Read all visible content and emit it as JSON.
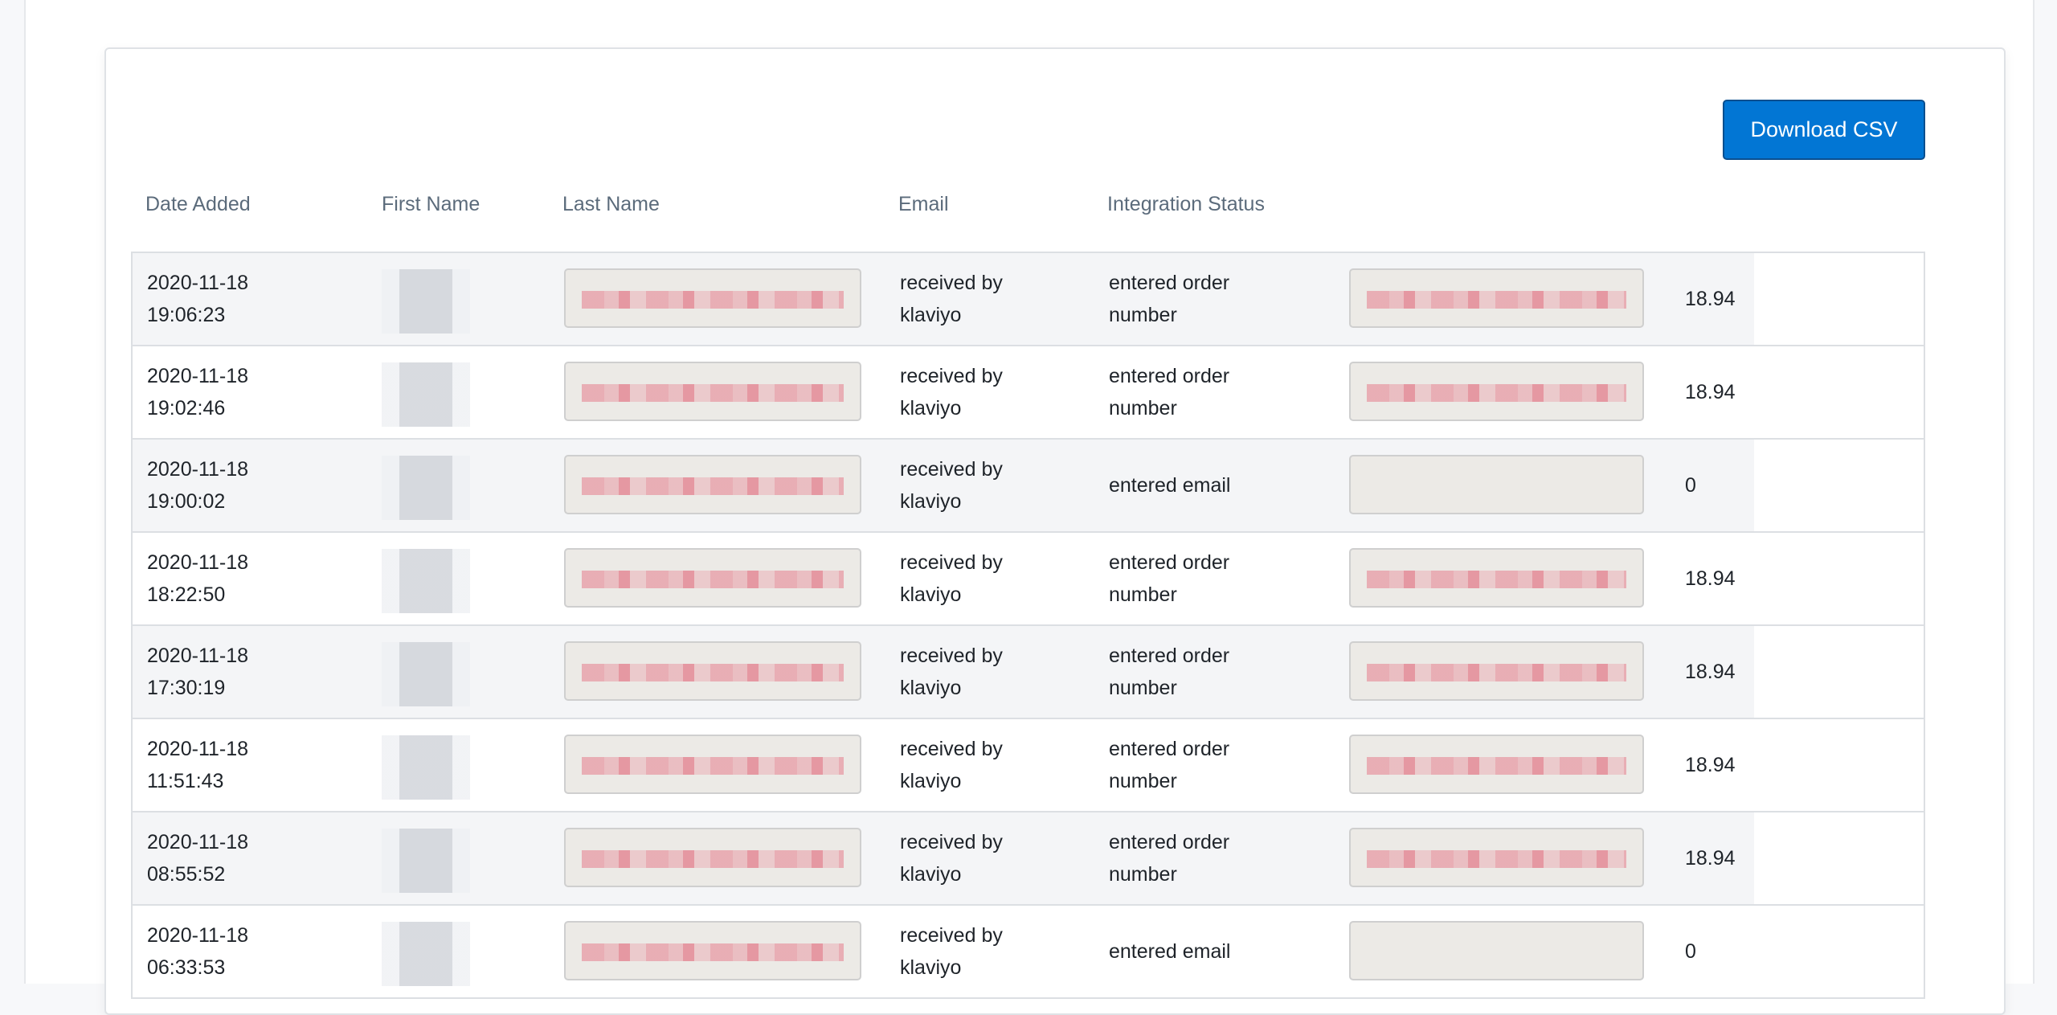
{
  "toolbar": {
    "download_label": "Download CSV",
    "accent": "#0276d4"
  },
  "columns": [
    "Date Added",
    "First Name",
    "Last Name",
    "Email",
    "Integration Status"
  ],
  "rows": [
    {
      "date": "2020-11-18",
      "time": "19:06:23",
      "email": "received by klaviyo",
      "status": "entered order number",
      "value": "18.94",
      "redacted_phone": true
    },
    {
      "date": "2020-11-18",
      "time": "19:02:46",
      "email": "received by klaviyo",
      "status": "entered order number",
      "value": "18.94",
      "redacted_phone": true
    },
    {
      "date": "2020-11-18",
      "time": "19:00:02",
      "email": "received by klaviyo",
      "status": "entered email",
      "value": "0",
      "redacted_phone": false
    },
    {
      "date": "2020-11-18",
      "time": "18:22:50",
      "email": "received by klaviyo",
      "status": "entered order number",
      "value": "18.94",
      "redacted_phone": true
    },
    {
      "date": "2020-11-18",
      "time": "17:30:19",
      "email": "received by klaviyo",
      "status": "entered order number",
      "value": "18.94",
      "redacted_phone": true
    },
    {
      "date": "2020-11-18",
      "time": "11:51:43",
      "email": "received by klaviyo",
      "status": "entered order number",
      "value": "18.94",
      "redacted_phone": true
    },
    {
      "date": "2020-11-18",
      "time": "08:55:52",
      "email": "received by klaviyo",
      "status": "entered order number",
      "value": "18.94",
      "redacted_phone": true
    },
    {
      "date": "2020-11-18",
      "time": "06:33:53",
      "email": "received by klaviyo",
      "status": "entered email",
      "value": "0",
      "redacted_phone": false
    }
  ]
}
